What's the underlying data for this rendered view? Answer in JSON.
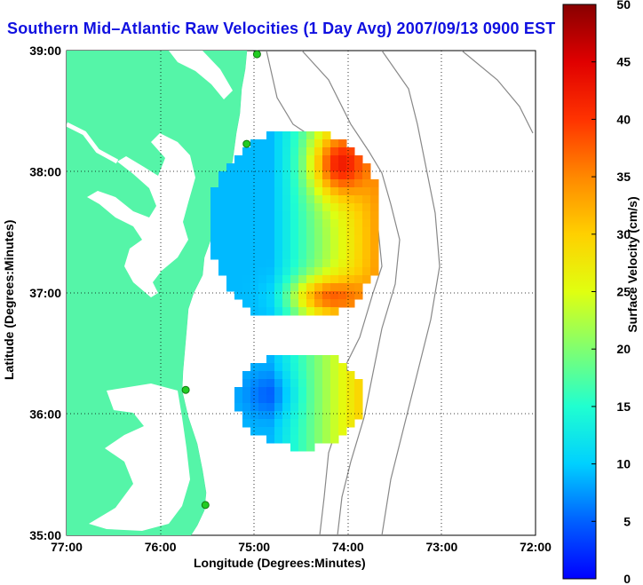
{
  "title": "Southern Mid–Atlantic Raw Velocities (1 Day Avg) 2007/09/13 0900 EST",
  "xlabel": "Longitude (Degrees:Minutes)",
  "ylabel": "Latitude (Degrees:Minutes)",
  "colorbar_label": "Surface Velocity (cm/s)",
  "x_ticks": [
    "77:00",
    "76:00",
    "75:00",
    "74:00",
    "73:00",
    "72:00"
  ],
  "y_ticks": [
    "39:00",
    "38:00",
    "37:00",
    "36:00",
    "35:00"
  ],
  "colorbar_ticks": [
    "0",
    "5",
    "10",
    "15",
    "20",
    "25",
    "30",
    "35",
    "40",
    "45",
    "50"
  ],
  "colors": {
    "land": "#55f5a8",
    "title": "#1010e0",
    "contour": "#888888",
    "station": "#22cc22"
  },
  "map_data": {
    "type": "heatmap",
    "extent": {
      "lon": [
        -77,
        -72
      ],
      "lat": [
        35,
        39
      ]
    },
    "colorbar_range": [
      0,
      50
    ],
    "grid": "dotted",
    "stations": [
      {
        "lon": -74.97,
        "lat": 38.97
      },
      {
        "lon": -75.08,
        "lat": 38.23
      },
      {
        "lon": -75.73,
        "lat": 36.2
      },
      {
        "lon": -75.52,
        "lat": 35.25
      }
    ]
  }
}
